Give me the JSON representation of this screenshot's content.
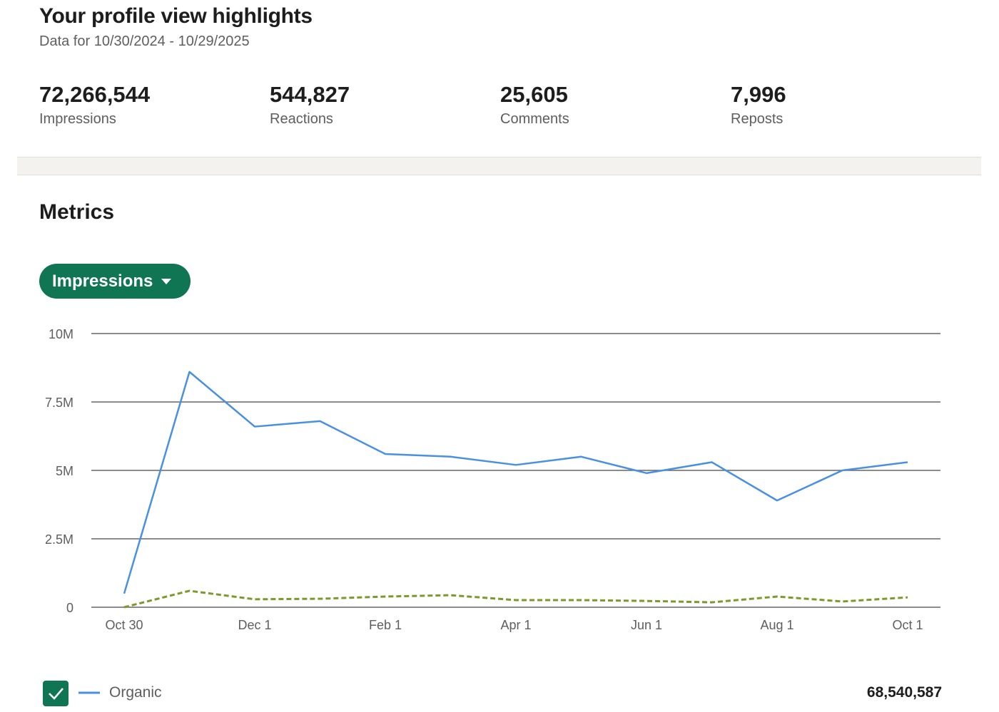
{
  "header": {
    "title": "Your profile view highlights",
    "subtitle": "Data for 10/30/2024 - 10/29/2025"
  },
  "stats": [
    {
      "value": "72,266,544",
      "label": "Impressions"
    },
    {
      "value": "544,827",
      "label": "Reactions"
    },
    {
      "value": "25,605",
      "label": "Comments"
    },
    {
      "value": "7,996",
      "label": "Reposts"
    }
  ],
  "metrics": {
    "title": "Metrics",
    "dropdown": "Impressions",
    "organic_total": "68,540,587"
  },
  "chart_data": {
    "type": "line",
    "categories": [
      "Oct 30",
      null,
      "Dec 1",
      null,
      "Feb 1",
      null,
      "Apr 1",
      null,
      "Jun 1",
      null,
      "Aug 1",
      null,
      "Oct 1"
    ],
    "series": [
      {
        "name": "Organic",
        "color": "#4a90e2",
        "values": [
          500000,
          8600000,
          6600000,
          6800000,
          5600000,
          5500000,
          5200000,
          5500000,
          4900000,
          5300000,
          3900000,
          5000000,
          5300000
        ]
      },
      {
        "color": "#7a9a2a",
        "dashed": true,
        "values": [
          0,
          600000,
          290000,
          310000,
          390000,
          440000,
          260000,
          260000,
          230000,
          180000,
          390000,
          210000,
          360000
        ]
      }
    ],
    "ylim": [
      0,
      10000000
    ],
    "yticks": [
      0,
      {
        "value": 2500000,
        "label": "2.5M"
      },
      {
        "value": 5000000,
        "label": "5M"
      },
      {
        "value": 7500000,
        "label": "7.5M"
      },
      {
        "value": 10000000,
        "label": "10M"
      }
    ],
    "grid": true
  }
}
